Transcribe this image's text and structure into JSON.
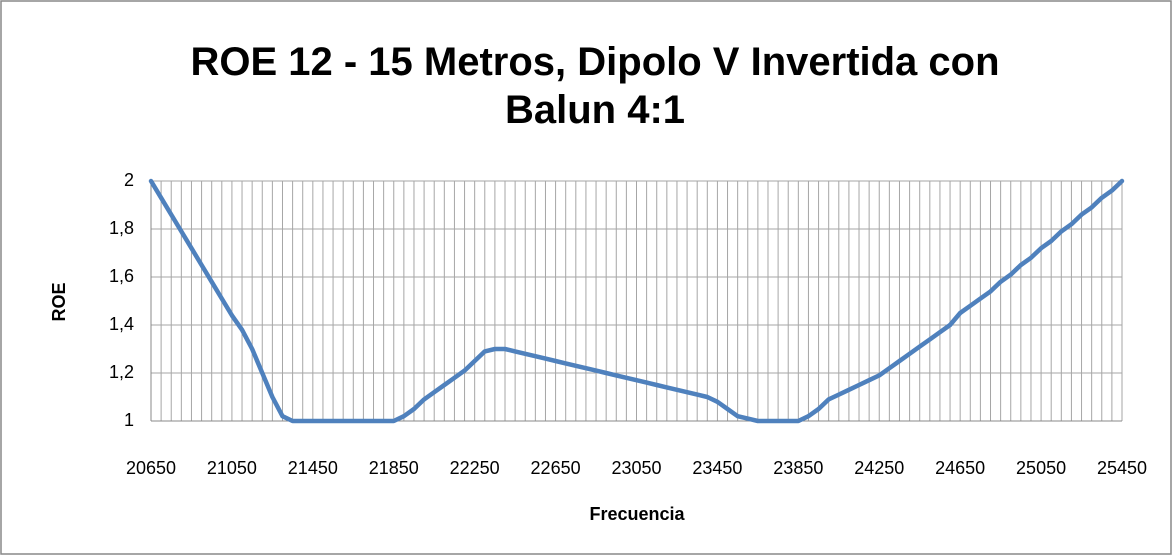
{
  "chart_data": {
    "type": "line",
    "title": "ROE 12 - 15 Metros, Dipolo V Invertida con Balun 4:1",
    "x_label": "Frecuencia",
    "y_label": "ROE",
    "categories": [
      "20650",
      null,
      null,
      null,
      null,
      null,
      null,
      null,
      "21050",
      null,
      null,
      null,
      null,
      null,
      null,
      null,
      "21450",
      null,
      null,
      null,
      null,
      null,
      null,
      null,
      "21850",
      null,
      null,
      null,
      null,
      null,
      null,
      null,
      "22250",
      null,
      null,
      null,
      null,
      null,
      null,
      null,
      "22650",
      null,
      null,
      null,
      null,
      null,
      null,
      null,
      "23050",
      null,
      null,
      null,
      null,
      null,
      null,
      null,
      "23450",
      null,
      null,
      null,
      null,
      null,
      null,
      null,
      "23850",
      null,
      null,
      null,
      null,
      null,
      null,
      null,
      "24250",
      null,
      null,
      null,
      null,
      null,
      null,
      null,
      "24650",
      null,
      null,
      null,
      null,
      null,
      null,
      null,
      "25050",
      null,
      null,
      null,
      null,
      null,
      null,
      null,
      "25450"
    ],
    "series": [
      {
        "name": "ROE",
        "color": "#4f81bd",
        "values": [
          2,
          1.93,
          1.86,
          1.79,
          1.72,
          1.65,
          1.58,
          1.51,
          1.44,
          1.38,
          1.3,
          1.2,
          1.1,
          1.02,
          1,
          1,
          1,
          1,
          1,
          1,
          1,
          1,
          1,
          1,
          1,
          1.02,
          1.05,
          1.09,
          1.12,
          1.15,
          1.18,
          1.21,
          1.25,
          1.29,
          1.3,
          1.3,
          1.29,
          1.28,
          1.27,
          1.26,
          1.25,
          1.24,
          1.23,
          1.22,
          1.21,
          1.2,
          1.19,
          1.18,
          1.17,
          1.16,
          1.15,
          1.14,
          1.13,
          1.12,
          1.11,
          1.1,
          1.08,
          1.05,
          1.02,
          1.01,
          1,
          1,
          1,
          1,
          1,
          1.02,
          1.05,
          1.09,
          1.11,
          1.13,
          1.15,
          1.17,
          1.19,
          1.22,
          1.25,
          1.28,
          1.31,
          1.34,
          1.37,
          1.4,
          1.45,
          1.48,
          1.51,
          1.54,
          1.58,
          1.61,
          1.65,
          1.68,
          1.72,
          1.75,
          1.79,
          1.82,
          1.86,
          1.89,
          1.93,
          1.96,
          2
        ]
      }
    ],
    "ylim": [
      1,
      2
    ],
    "yticks": [
      1,
      {
        "value": 1.2,
        "label": "1,2"
      },
      {
        "value": 1.4,
        "label": "1,4"
      },
      {
        "value": 1.6,
        "label": "1,6"
      },
      {
        "value": 1.8,
        "label": "1,8"
      },
      2
    ],
    "grid": true
  }
}
